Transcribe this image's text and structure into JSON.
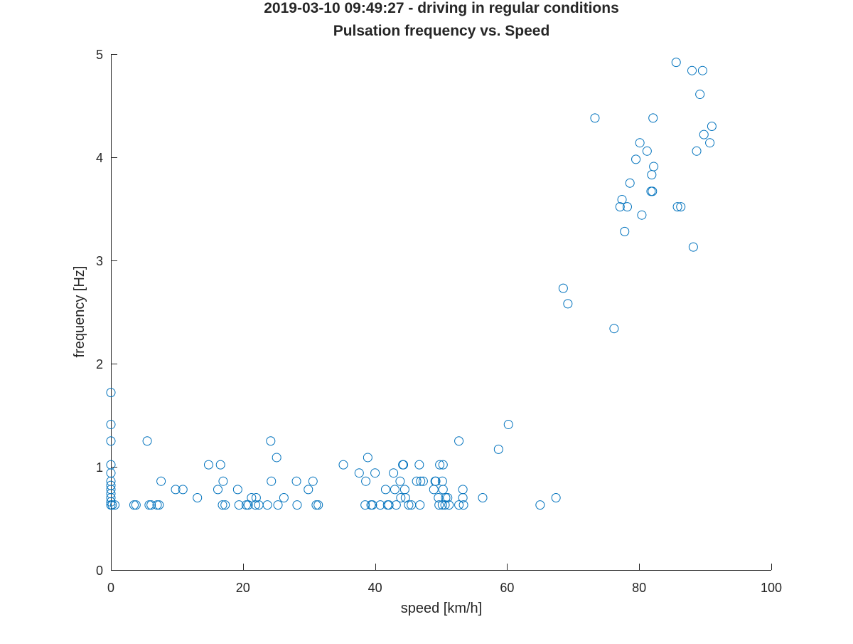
{
  "figure": {
    "title_line1": "2019-03-10 09:49:27 - driving in regular conditions",
    "title_line2": "Pulsation frequency vs. Speed"
  },
  "chart_data": {
    "type": "scatter",
    "title": "2019-03-10 09:49:27 - driving in regular conditions",
    "subtitle": "Pulsation frequency vs. Speed",
    "xlabel": "speed [km/h]",
    "ylabel": "frequency [Hz]",
    "xlim": [
      0,
      100
    ],
    "ylim": [
      0,
      5
    ],
    "xticks": [
      0,
      20,
      40,
      60,
      80,
      100
    ],
    "yticks": [
      0,
      1,
      2,
      3,
      4,
      5
    ],
    "grid": false,
    "legend": "none",
    "marker": "open-circle",
    "colors": {
      "marker": "#0072BD",
      "axis": "#262626",
      "text": "#262626",
      "background": "#ffffff"
    },
    "series": [
      {
        "points": [
          [
            0,
            1.72
          ],
          [
            0,
            1.41
          ],
          [
            0,
            1.25
          ],
          [
            0,
            1.02
          ],
          [
            0,
            0.94
          ],
          [
            0,
            0.86
          ],
          [
            0,
            0.82
          ],
          [
            0,
            0.78
          ],
          [
            0,
            0.74
          ],
          [
            0,
            0.7
          ],
          [
            0,
            0.66
          ],
          [
            0,
            0.63
          ],
          [
            0.2,
            0.63
          ],
          [
            0.6,
            0.63
          ],
          [
            3.5,
            0.63
          ],
          [
            3.8,
            0.63
          ],
          [
            5.5,
            1.25
          ],
          [
            5.8,
            0.63
          ],
          [
            6.1,
            0.63
          ],
          [
            7.0,
            0.63
          ],
          [
            7.3,
            0.63
          ],
          [
            7.6,
            0.86
          ],
          [
            9.8,
            0.78
          ],
          [
            10.9,
            0.78
          ],
          [
            13.1,
            0.7
          ],
          [
            14.8,
            1.02
          ],
          [
            16.2,
            0.78
          ],
          [
            16.6,
            1.02
          ],
          [
            16.9,
            0.63
          ],
          [
            17.0,
            0.86
          ],
          [
            17.3,
            0.63
          ],
          [
            19.2,
            0.78
          ],
          [
            19.4,
            0.63
          ],
          [
            20.5,
            0.63
          ],
          [
            20.8,
            0.63
          ],
          [
            21.3,
            0.7
          ],
          [
            21.9,
            0.63
          ],
          [
            22.0,
            0.7
          ],
          [
            22.4,
            0.63
          ],
          [
            23.7,
            0.63
          ],
          [
            24.2,
            1.25
          ],
          [
            24.3,
            0.86
          ],
          [
            25.1,
            1.09
          ],
          [
            25.3,
            0.63
          ],
          [
            26.2,
            0.7
          ],
          [
            28.1,
            0.86
          ],
          [
            28.2,
            0.63
          ],
          [
            29.9,
            0.78
          ],
          [
            30.6,
            0.86
          ],
          [
            31.1,
            0.63
          ],
          [
            31.4,
            0.63
          ],
          [
            35.2,
            1.02
          ],
          [
            37.6,
            0.94
          ],
          [
            38.5,
            0.63
          ],
          [
            38.6,
            0.86
          ],
          [
            38.9,
            1.09
          ],
          [
            39.4,
            0.63
          ],
          [
            39.6,
            0.63
          ],
          [
            40.0,
            0.94
          ],
          [
            40.8,
            0.63
          ],
          [
            41.6,
            0.78
          ],
          [
            41.9,
            0.63
          ],
          [
            42.1,
            0.63
          ],
          [
            42.8,
            0.94
          ],
          [
            43.0,
            0.78
          ],
          [
            43.2,
            0.63
          ],
          [
            43.8,
            0.86
          ],
          [
            43.9,
            0.7
          ],
          [
            44.2,
            1.02
          ],
          [
            44.3,
            1.02
          ],
          [
            44.5,
            0.78
          ],
          [
            44.6,
            0.7
          ],
          [
            45.1,
            0.63
          ],
          [
            45.5,
            0.63
          ],
          [
            46.3,
            0.86
          ],
          [
            46.7,
            1.02
          ],
          [
            46.8,
            0.63
          ],
          [
            46.9,
            0.86
          ],
          [
            47.3,
            0.86
          ],
          [
            48.9,
            0.78
          ],
          [
            49.1,
            0.86
          ],
          [
            49.2,
            0.86
          ],
          [
            49.6,
            0.7
          ],
          [
            49.7,
            0.63
          ],
          [
            49.8,
            1.02
          ],
          [
            50.2,
            0.63
          ],
          [
            50.2,
            0.86
          ],
          [
            50.3,
            1.02
          ],
          [
            50.3,
            0.78
          ],
          [
            50.6,
            0.63
          ],
          [
            50.7,
            0.7
          ],
          [
            51.0,
            0.7
          ],
          [
            51.2,
            0.63
          ],
          [
            52.7,
            0.63
          ],
          [
            52.7,
            1.25
          ],
          [
            53.3,
            0.78
          ],
          [
            53.3,
            0.7
          ],
          [
            53.4,
            0.63
          ],
          [
            56.3,
            0.7
          ],
          [
            58.7,
            1.17
          ],
          [
            60.2,
            1.41
          ],
          [
            65.0,
            0.63
          ],
          [
            67.4,
            0.7
          ],
          [
            68.5,
            2.73
          ],
          [
            69.2,
            2.58
          ],
          [
            73.3,
            4.38
          ],
          [
            76.2,
            2.34
          ],
          [
            77.1,
            3.52
          ],
          [
            77.4,
            3.59
          ],
          [
            77.8,
            3.28
          ],
          [
            78.2,
            3.52
          ],
          [
            78.6,
            3.75
          ],
          [
            79.5,
            3.98
          ],
          [
            80.1,
            4.14
          ],
          [
            80.4,
            3.44
          ],
          [
            81.2,
            4.06
          ],
          [
            81.8,
            3.67
          ],
          [
            82.0,
            3.67
          ],
          [
            81.9,
            3.83
          ],
          [
            82.1,
            4.38
          ],
          [
            82.2,
            3.91
          ],
          [
            85.8,
            3.52
          ],
          [
            85.6,
            4.92
          ],
          [
            86.3,
            3.52
          ],
          [
            88.0,
            4.84
          ],
          [
            88.2,
            3.13
          ],
          [
            88.7,
            4.06
          ],
          [
            89.2,
            4.61
          ],
          [
            89.6,
            4.84
          ],
          [
            89.8,
            4.22
          ],
          [
            90.7,
            4.14
          ],
          [
            91.0,
            4.3
          ]
        ]
      }
    ]
  }
}
